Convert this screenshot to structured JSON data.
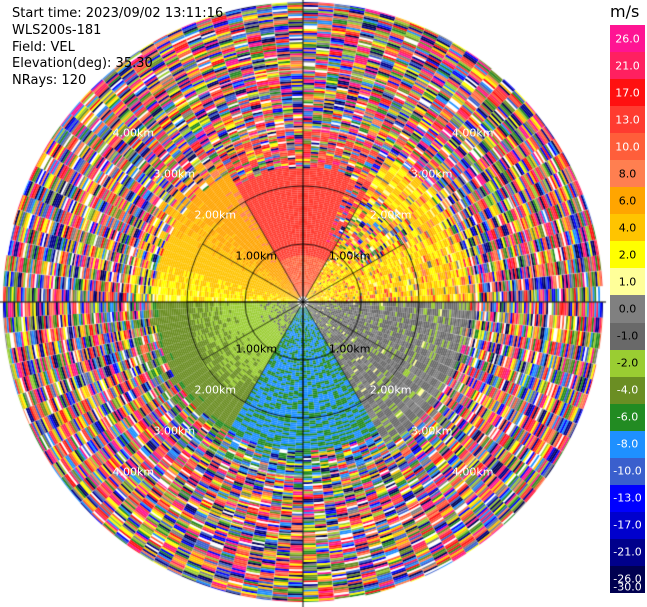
{
  "header": {
    "start_time": "Start time: 2023/09/02 13:11:16",
    "instrument": "WLS200s-181",
    "field": "Field: VEL",
    "elevation": "Elevation(deg): 35.30",
    "nrays": "NRays: 120"
  },
  "colorbar": {
    "unit": "m/s",
    "ticks": [
      "26.0",
      "21.0",
      "17.0",
      "13.0",
      "10.0",
      "8.0",
      "6.0",
      "4.0",
      "2.0",
      "1.0",
      "0.0",
      "-1.0",
      "-2.0",
      "-4.0",
      "-6.0",
      "-8.0",
      "-10.0",
      "-13.0",
      "-17.0",
      "-21.0",
      "-26.0",
      "-30.0"
    ],
    "colors": [
      "#ff1493",
      "#ff2060",
      "#ff1010",
      "#ff3b30",
      "#ff5e3a",
      "#ff7f50",
      "#ffa500",
      "#ffc400",
      "#ffff00",
      "#ffff99",
      "#808080",
      "#696969",
      "#9acd32",
      "#6b8e23",
      "#228b22",
      "#1e90ff",
      "#3a5fcd",
      "#0000ff",
      "#0000cd",
      "#00008b",
      "#000050"
    ]
  },
  "chart_data": {
    "type": "ppi",
    "field": "VEL",
    "nrays": 120,
    "elevation_deg": 35.3,
    "range_rings_km": [
      1.0,
      2.0,
      3.0,
      4.0
    ],
    "range_ring_labels": [
      "1.00km",
      "2.00km",
      "3.00km",
      "4.00km"
    ],
    "velocity_scale": [
      -30.0,
      26.0
    ],
    "noise_gate_start_km": 2.8,
    "sectors": [
      {
        "azimuth_deg": [
          270,
          330
        ],
        "range_km": [
          0.2,
          2.6
        ],
        "velocity": "1.0 to 6.0"
      },
      {
        "azimuth_deg": [
          330,
          30
        ],
        "range_km": [
          0.4,
          2.4
        ],
        "velocity": "10.0 to 13.0"
      },
      {
        "azimuth_deg": [
          30,
          90
        ],
        "range_km": [
          0.2,
          2.8
        ],
        "velocity": "mixed, 1.0 to 2.0"
      },
      {
        "azimuth_deg": [
          90,
          150
        ],
        "range_km": [
          0.2,
          2.8
        ],
        "velocity": "-2.0 to 0.0"
      },
      {
        "azimuth_deg": [
          150,
          210
        ],
        "range_km": [
          0.2,
          2.6
        ],
        "velocity": "-10.0 to -8.0"
      },
      {
        "azimuth_deg": [
          210,
          270
        ],
        "range_km": [
          0.2,
          2.6
        ],
        "velocity": "-6.0 to -1.0"
      }
    ]
  }
}
